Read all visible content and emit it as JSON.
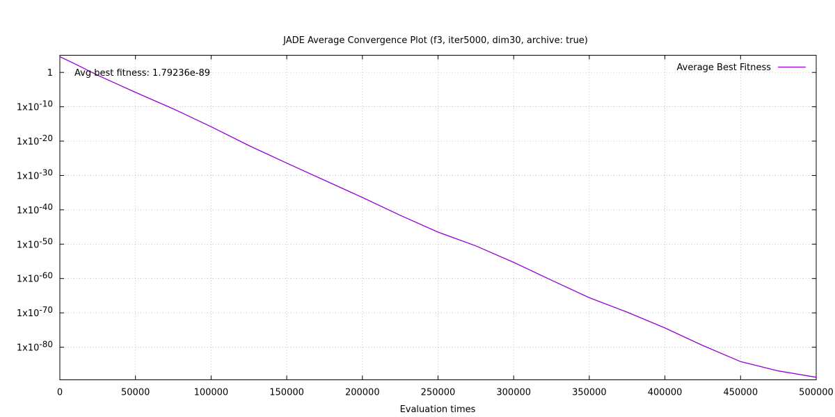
{
  "chart_data": {
    "type": "line",
    "title": "JADE Average Convergence Plot (f3, iter5000, dim30, archive: true)",
    "xlabel": "Evaluation times",
    "ylabel": "",
    "xlim": [
      0,
      500000
    ],
    "ylim_log10": [
      -89.5,
      5
    ],
    "yscale": "log",
    "grid": true,
    "legend_position": "top-right",
    "annotation": "Avg best fitness: 1.79236e-89",
    "x_ticks": [
      {
        "value": 0,
        "label": "0"
      },
      {
        "value": 50000,
        "label": "50000"
      },
      {
        "value": 100000,
        "label": "100000"
      },
      {
        "value": 150000,
        "label": "150000"
      },
      {
        "value": 200000,
        "label": "200000"
      },
      {
        "value": 250000,
        "label": "250000"
      },
      {
        "value": 300000,
        "label": "300000"
      },
      {
        "value": 350000,
        "label": "350000"
      },
      {
        "value": 400000,
        "label": "400000"
      },
      {
        "value": 450000,
        "label": "450000"
      },
      {
        "value": 500000,
        "label": "500000"
      }
    ],
    "y_ticks": [
      {
        "log10": 0,
        "base": "1",
        "exp": ""
      },
      {
        "log10": -10,
        "base": "1x10",
        "exp": "-10"
      },
      {
        "log10": -20,
        "base": "1x10",
        "exp": "-20"
      },
      {
        "log10": -30,
        "base": "1x10",
        "exp": "-30"
      },
      {
        "log10": -40,
        "base": "1x10",
        "exp": "-40"
      },
      {
        "log10": -50,
        "base": "1x10",
        "exp": "-50"
      },
      {
        "log10": -60,
        "base": "1x10",
        "exp": "-60"
      },
      {
        "log10": -70,
        "base": "1x10",
        "exp": "-70"
      },
      {
        "log10": -80,
        "base": "1x10",
        "exp": "-80"
      }
    ],
    "series": [
      {
        "name": "Average Best Fitness",
        "color": "#9400d3",
        "x": [
          0,
          10000,
          25000,
          50000,
          75000,
          100000,
          125000,
          150000,
          175000,
          200000,
          225000,
          250000,
          275000,
          300000,
          325000,
          350000,
          375000,
          400000,
          425000,
          450000,
          475000,
          500000
        ],
        "log10_y": [
          4.6,
          2.5,
          -0.8,
          -5.8,
          -10.6,
          -15.8,
          -21.3,
          -26.4,
          -31.4,
          -36.4,
          -41.6,
          -46.5,
          -50.5,
          -55.3,
          -60.5,
          -65.6,
          -69.8,
          -74.4,
          -79.5,
          -84.2,
          -86.9,
          -88.75
        ]
      }
    ]
  }
}
